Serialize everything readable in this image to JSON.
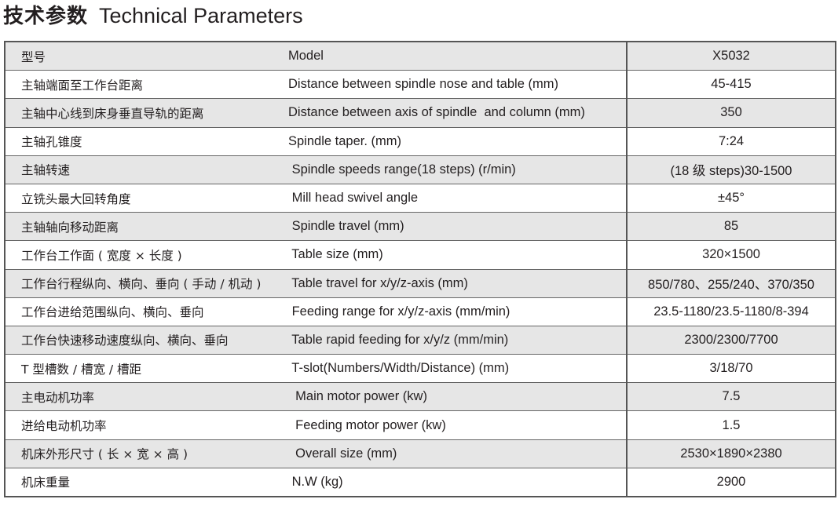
{
  "title": {
    "zh": "技术参数",
    "en": "Technical Parameters"
  },
  "rows": [
    {
      "zh": "型号",
      "en": "Model",
      "value": "X5032"
    },
    {
      "zh": "主轴端面至工作台距离",
      "en": "Distance between spindle nose and table (mm)",
      "value": "45-415"
    },
    {
      "zh": "主轴中心线到床身垂直导轨的距离",
      "en": "Distance between axis of spindle  and column (mm)",
      "value": "350"
    },
    {
      "zh": "主轴孔锥度",
      "en": "Spindle taper. (mm)",
      "value": "7:24"
    },
    {
      "zh": "主轴转速",
      "en": " Spindle speeds range(18 steps) (r/min)",
      "value": "(18 级 steps)30-1500"
    },
    {
      "zh": "立铣头最大回转角度",
      "en": " Mill head swivel angle",
      "value": "±45°"
    },
    {
      "zh": "主轴轴向移动距离",
      "en": " Spindle travel (mm)",
      "value": "85"
    },
    {
      "zh": "工作台工作面 ( 宽度 × 长度 )",
      "en": " Table size (mm)",
      "value": "320×1500"
    },
    {
      "zh": "工作台行程纵向、横向、垂向 ( 手动 / 机动 )",
      "en": " Table travel for x/y/z-axis (mm)",
      "value": "850/780、255/240、370/350"
    },
    {
      "zh": "工作台进给范围纵向、横向、垂向",
      "en": " Feeding range for x/y/z-axis (mm/min)",
      "value": "23.5-1180/23.5-1180/8-394"
    },
    {
      "zh": "工作台快速移动速度纵向、横向、垂向",
      "en": " Table rapid feeding for x/y/z (mm/min)",
      "value": "2300/2300/7700"
    },
    {
      "zh": "T 型槽数 / 槽宽 / 槽距",
      "en": " T-slot(Numbers/Width/Distance) (mm)",
      "value": "3/18/70"
    },
    {
      "zh": "主电动机功率",
      "en": "  Main motor power (kw)",
      "value": "7.5"
    },
    {
      "zh": "进给电动机功率",
      "en": "  Feeding motor power (kw)",
      "value": "1.5"
    },
    {
      "zh": "机床外形尺寸 ( 长 × 宽 × 高 )",
      "en": "  Overall size (mm)",
      "value": "2530×1890×2380"
    },
    {
      "zh": "机床重量",
      "en": " N.W (kg)",
      "value": "2900"
    }
  ]
}
